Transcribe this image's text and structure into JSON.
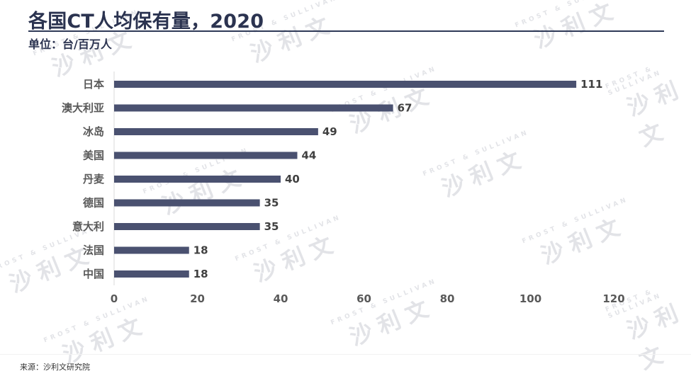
{
  "header": {
    "title": "各国CT人均保有量，2020",
    "unit": "单位：台/百万人"
  },
  "footer": {
    "source": "来源：沙利文研究院"
  },
  "watermark": {
    "en": "FROST & SULLIVAN",
    "cn": "沙利文"
  },
  "colors": {
    "bar": "#4a5170",
    "title": "#2b3350",
    "axis_text": "#595959"
  },
  "chart_data": {
    "type": "bar",
    "orientation": "horizontal",
    "categories": [
      "日本",
      "澳大利亚",
      "冰岛",
      "美国",
      "丹麦",
      "德国",
      "意大利",
      "法国",
      "中国"
    ],
    "values": [
      111,
      67,
      49,
      44,
      40,
      35,
      35,
      18,
      18
    ],
    "xlim": [
      0,
      120
    ],
    "xticks": [
      "0",
      "20",
      "40",
      "60",
      "80",
      "100",
      "120"
    ],
    "data_labels": true,
    "grid": false,
    "legend": false
  }
}
